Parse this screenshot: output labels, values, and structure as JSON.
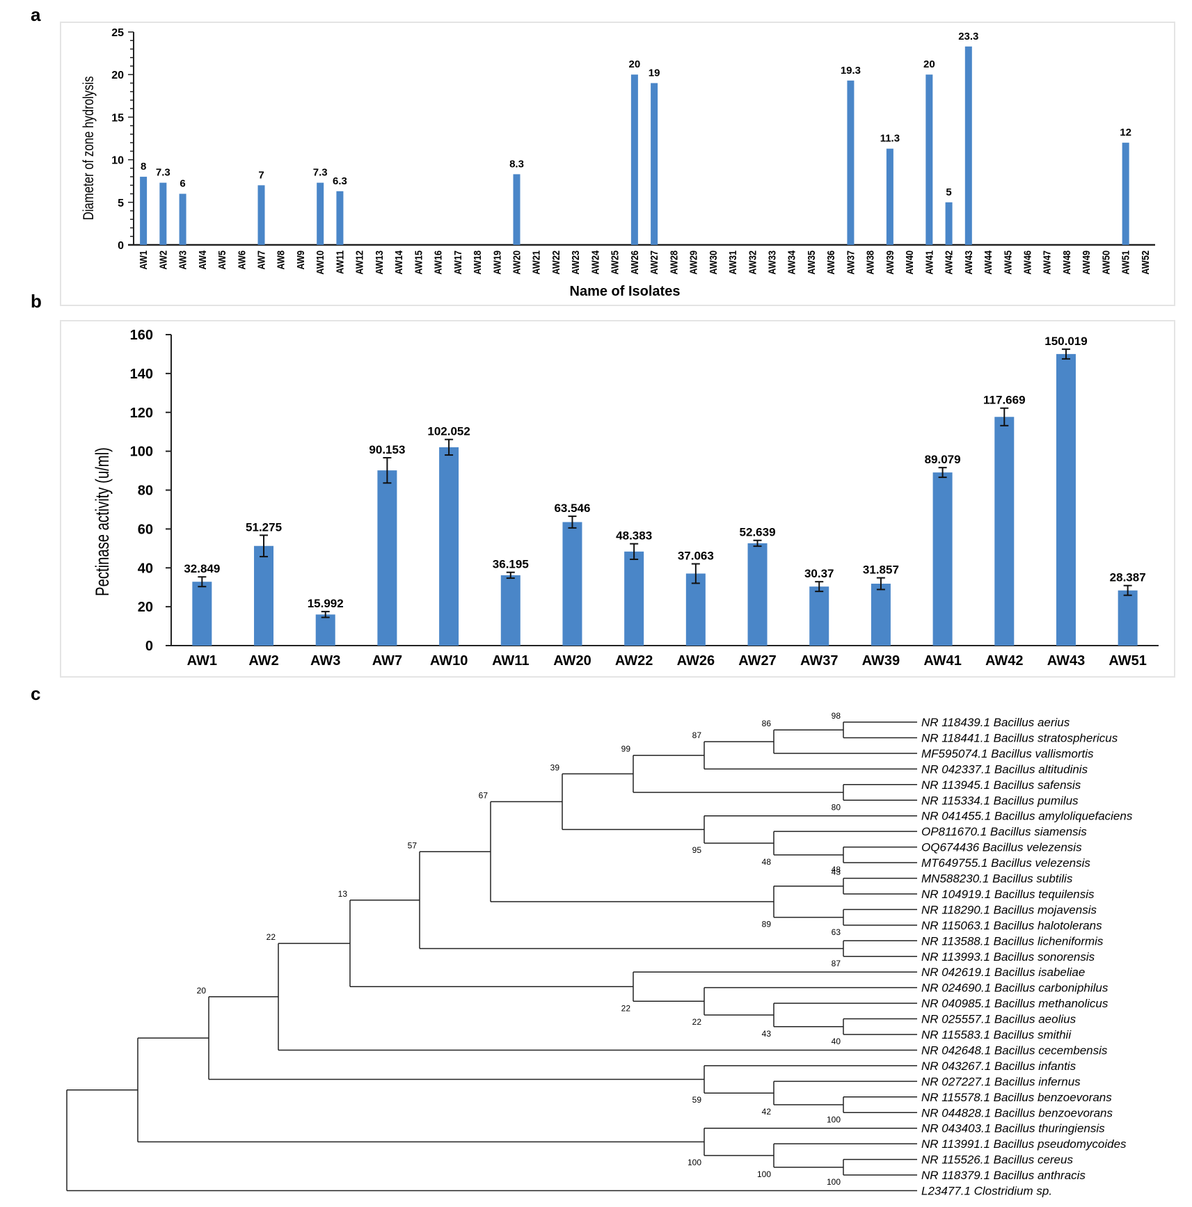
{
  "panels": {
    "a": "a",
    "b": "b",
    "c": "c"
  },
  "colors": {
    "bar": "#4a86c8",
    "axis": "#222222",
    "text": "#000000",
    "frame": "#e4e4e4"
  },
  "chart_data": [
    {
      "id": "a",
      "type": "bar",
      "title": "",
      "xlabel": "Name of Isolates",
      "ylabel": "Diameter of zone hydrolysis",
      "ylim": [
        0,
        25
      ],
      "yticks": [
        "0",
        "5",
        "10",
        "15",
        "20",
        "25"
      ],
      "minor_tick_step": 1,
      "grid": false,
      "categories": [
        "AW1",
        "AW2",
        "AW3",
        "AW4",
        "AW5",
        "AW6",
        "AW7",
        "AW8",
        "AW9",
        "AW10",
        "AW11",
        "AW12",
        "AW13",
        "AW14",
        "AW15",
        "AW16",
        "AW17",
        "AW18",
        "AW19",
        "AW20",
        "AW21",
        "AW22",
        "AW23",
        "AW24",
        "AW25",
        "AW26",
        "AW27",
        "AW28",
        "AW29",
        "AW30",
        "AW31",
        "AW32",
        "AW33",
        "AW34",
        "AW35",
        "AW36",
        "AW37",
        "AW38",
        "AW39",
        "AW40",
        "AW41",
        "AW42",
        "AW43",
        "AW44",
        "AW45",
        "AW46",
        "AW47",
        "AW48",
        "AW49",
        "AW50",
        "AW51",
        "AW52"
      ],
      "values": [
        8,
        7.3,
        6,
        0,
        0,
        0,
        7,
        0,
        0,
        7.3,
        6.3,
        0,
        0,
        0,
        0,
        0,
        0,
        0,
        0,
        8.3,
        0,
        0,
        0,
        0,
        0,
        20,
        19,
        0,
        0,
        0,
        0,
        0,
        0,
        0,
        0,
        0,
        19.3,
        0,
        11.3,
        0,
        20,
        5,
        23.3,
        0,
        0,
        0,
        0,
        0,
        0,
        0,
        12,
        0
      ],
      "data_labels": [
        "8",
        "7.3",
        "6",
        "",
        "",
        "",
        "7",
        "",
        "",
        "7.3",
        "6.3",
        "",
        "",
        "",
        "",
        "",
        "",
        "",
        "",
        "8.3",
        "",
        "",
        "",
        "",
        "",
        "20",
        "19",
        "",
        "",
        "",
        "",
        "",
        "",
        "",
        "",
        "",
        "19.3",
        "",
        "11.3",
        "",
        "20",
        "5",
        "23.3",
        "",
        "",
        "",
        "",
        "",
        "",
        "",
        "12",
        ""
      ]
    },
    {
      "id": "b",
      "type": "bar",
      "title": "",
      "xlabel": "",
      "ylabel": "Pectinase activity (u/ml)",
      "ylim": [
        0,
        160
      ],
      "yticks": [
        "0",
        "20",
        "40",
        "60",
        "80",
        "100",
        "120",
        "140",
        "160"
      ],
      "grid": false,
      "categories": [
        "AW1",
        "AW2",
        "AW3",
        "AW7",
        "AW10",
        "AW11",
        "AW20",
        "AW22",
        "AW26",
        "AW27",
        "AW37",
        "AW39",
        "AW41",
        "AW42",
        "AW43",
        "AW51"
      ],
      "values": [
        32.849,
        51.275,
        15.992,
        90.153,
        102.052,
        36.195,
        63.546,
        48.383,
        37.063,
        52.639,
        30.37,
        31.857,
        89.079,
        117.669,
        150.019,
        28.387
      ],
      "errors": [
        2.5,
        5.5,
        1.5,
        6.5,
        4,
        1.5,
        3,
        4,
        5,
        1.5,
        2.5,
        3,
        2.5,
        4.5,
        2.5,
        2.5
      ],
      "data_labels": [
        "32.849",
        "51.275",
        "15.992",
        "90.153",
        "102.052",
        "36.195",
        "63.546",
        "48.383",
        "37.063",
        "52.639",
        "30.37",
        "31.857",
        "89.079",
        "117.669",
        "150.019",
        "28.387"
      ]
    }
  ],
  "tree": {
    "leaves": [
      "NR 118439.1 Bacillus aerius",
      "NR 118441.1 Bacillus stratosphericus",
      "MF595074.1 Bacillus vallismortis",
      "NR 042337.1 Bacillus altitudinis",
      "NR 113945.1 Bacillus safensis",
      "NR 115334.1 Bacillus pumilus",
      "NR 041455.1 Bacillus amyloliquefaciens",
      "OP811670.1 Bacillus siamensis",
      "OQ674436 Bacillus velezensis",
      "MT649755.1 Bacillus velezensis",
      "MN588230.1 Bacillus subtilis",
      "NR 104919.1 Bacillus tequilensis",
      "NR 118290.1 Bacillus mojavensis",
      "NR 115063.1 Bacillus halotolerans",
      "NR 113588.1 Bacillus licheniformis",
      "NR 113993.1 Bacillus sonorensis",
      "NR 042619.1 Bacillus isabeliae",
      "NR 024690.1 Bacillus carboniphilus",
      "NR 040985.1 Bacillus methanolicus",
      "NR 025557.1 Bacillus aeolius",
      "NR 115583.1 Bacillus smithii",
      "NR 042648.1 Bacillus cecembensis",
      "NR 043267.1 Bacillus infantis",
      "NR 027227.1 Bacillus infernus",
      "NR 115578.1 Bacillus benzoevorans",
      "NR 044828.1 Bacillus benzoevorans",
      "NR 043403.1 Bacillus thuringiensis",
      "NR 113991.1 Bacillus pseudomycoides",
      "NR 115526.1 Bacillus cereus",
      "NR 118379.1 Bacillus anthracis",
      "L23477.1 Clostridium sp."
    ],
    "newick": "((((((((((((aerius,stratosphericus)98,vallismortis)86,altitudinis)87,(safensis,pumilus)80)99,(amyloliquefaciens,(siamensis,(velezensis_OQ,velezensis_MT)48)48)95)39,((subtilis,tequilensis)43,(mojavensis,halotolerans)63)89)67,(licheniformis,sonorensis)87)57,(isabeliae,(carboniphilus,(methanolicus,(aeolius,smithii)40)43)22)22)13,cecembensis)22,(infantis,(infernus,(benzoevorans_115578,benzoevorans_044828)100)42)59)20,(thuringiensis,(pseudomycoides,(cereus,anthracis)100)100)100),Clostridium)",
    "nodes": [
      {
        "id": "n98",
        "children": [
          0,
          1
        ],
        "bootstrap": "98"
      },
      {
        "id": "n86",
        "children": [
          "n98",
          2
        ],
        "bootstrap": "86"
      },
      {
        "id": "n87a",
        "children": [
          "n86",
          3
        ],
        "bootstrap": "87"
      },
      {
        "id": "n80",
        "children": [
          4,
          5
        ],
        "bootstrap": "80"
      },
      {
        "id": "n99",
        "children": [
          "n87a",
          "n80"
        ],
        "bootstrap": "99"
      },
      {
        "id": "n48b",
        "children": [
          8,
          9
        ],
        "bootstrap": "48"
      },
      {
        "id": "n48a",
        "children": [
          7,
          "n48b"
        ],
        "bootstrap": "48"
      },
      {
        "id": "n95",
        "children": [
          6,
          "n48a"
        ],
        "bootstrap": "95"
      },
      {
        "id": "n39",
        "children": [
          "n99",
          "n95"
        ],
        "bootstrap": "39"
      },
      {
        "id": "n43a",
        "children": [
          10,
          11
        ],
        "bootstrap": "43"
      },
      {
        "id": "n63",
        "children": [
          12,
          13
        ],
        "bootstrap": "63"
      },
      {
        "id": "n89",
        "children": [
          "n43a",
          "n63"
        ],
        "bootstrap": "89"
      },
      {
        "id": "n67",
        "children": [
          "n39",
          "n89"
        ],
        "bootstrap": "67"
      },
      {
        "id": "n87b",
        "children": [
          14,
          15
        ],
        "bootstrap": "87"
      },
      {
        "id": "n57",
        "children": [
          "n67",
          "n87b"
        ],
        "bootstrap": "57"
      },
      {
        "id": "n40",
        "children": [
          19,
          20
        ],
        "bootstrap": "40"
      },
      {
        "id": "n43b",
        "children": [
          18,
          "n40"
        ],
        "bootstrap": "43"
      },
      {
        "id": "n22c",
        "children": [
          17,
          "n43b"
        ],
        "bootstrap": "22"
      },
      {
        "id": "n22b",
        "children": [
          16,
          "n22c"
        ],
        "bootstrap": "22"
      },
      {
        "id": "n13",
        "children": [
          "n57",
          "n22b"
        ],
        "bootstrap": "13"
      },
      {
        "id": "n22a",
        "children": [
          "n13",
          21
        ],
        "bootstrap": "22"
      },
      {
        "id": "n100a",
        "children": [
          24,
          25
        ],
        "bootstrap": "100"
      },
      {
        "id": "n42",
        "children": [
          23,
          "n100a"
        ],
        "bootstrap": "42"
      },
      {
        "id": "n59",
        "children": [
          22,
          "n42"
        ],
        "bootstrap": "59"
      },
      {
        "id": "n20",
        "children": [
          "n22a",
          "n59"
        ],
        "bootstrap": "20"
      },
      {
        "id": "n100d",
        "children": [
          28,
          29
        ],
        "bootstrap": "100"
      },
      {
        "id": "n100c",
        "children": [
          27,
          "n100d"
        ],
        "bootstrap": "100"
      },
      {
        "id": "n100b",
        "children": [
          26,
          "n100c"
        ],
        "bootstrap": "100"
      },
      {
        "id": "nIn",
        "children": [
          "n20",
          "n100b"
        ],
        "bootstrap": ""
      },
      {
        "id": "root",
        "children": [
          "nIn",
          30
        ],
        "bootstrap": ""
      }
    ]
  }
}
